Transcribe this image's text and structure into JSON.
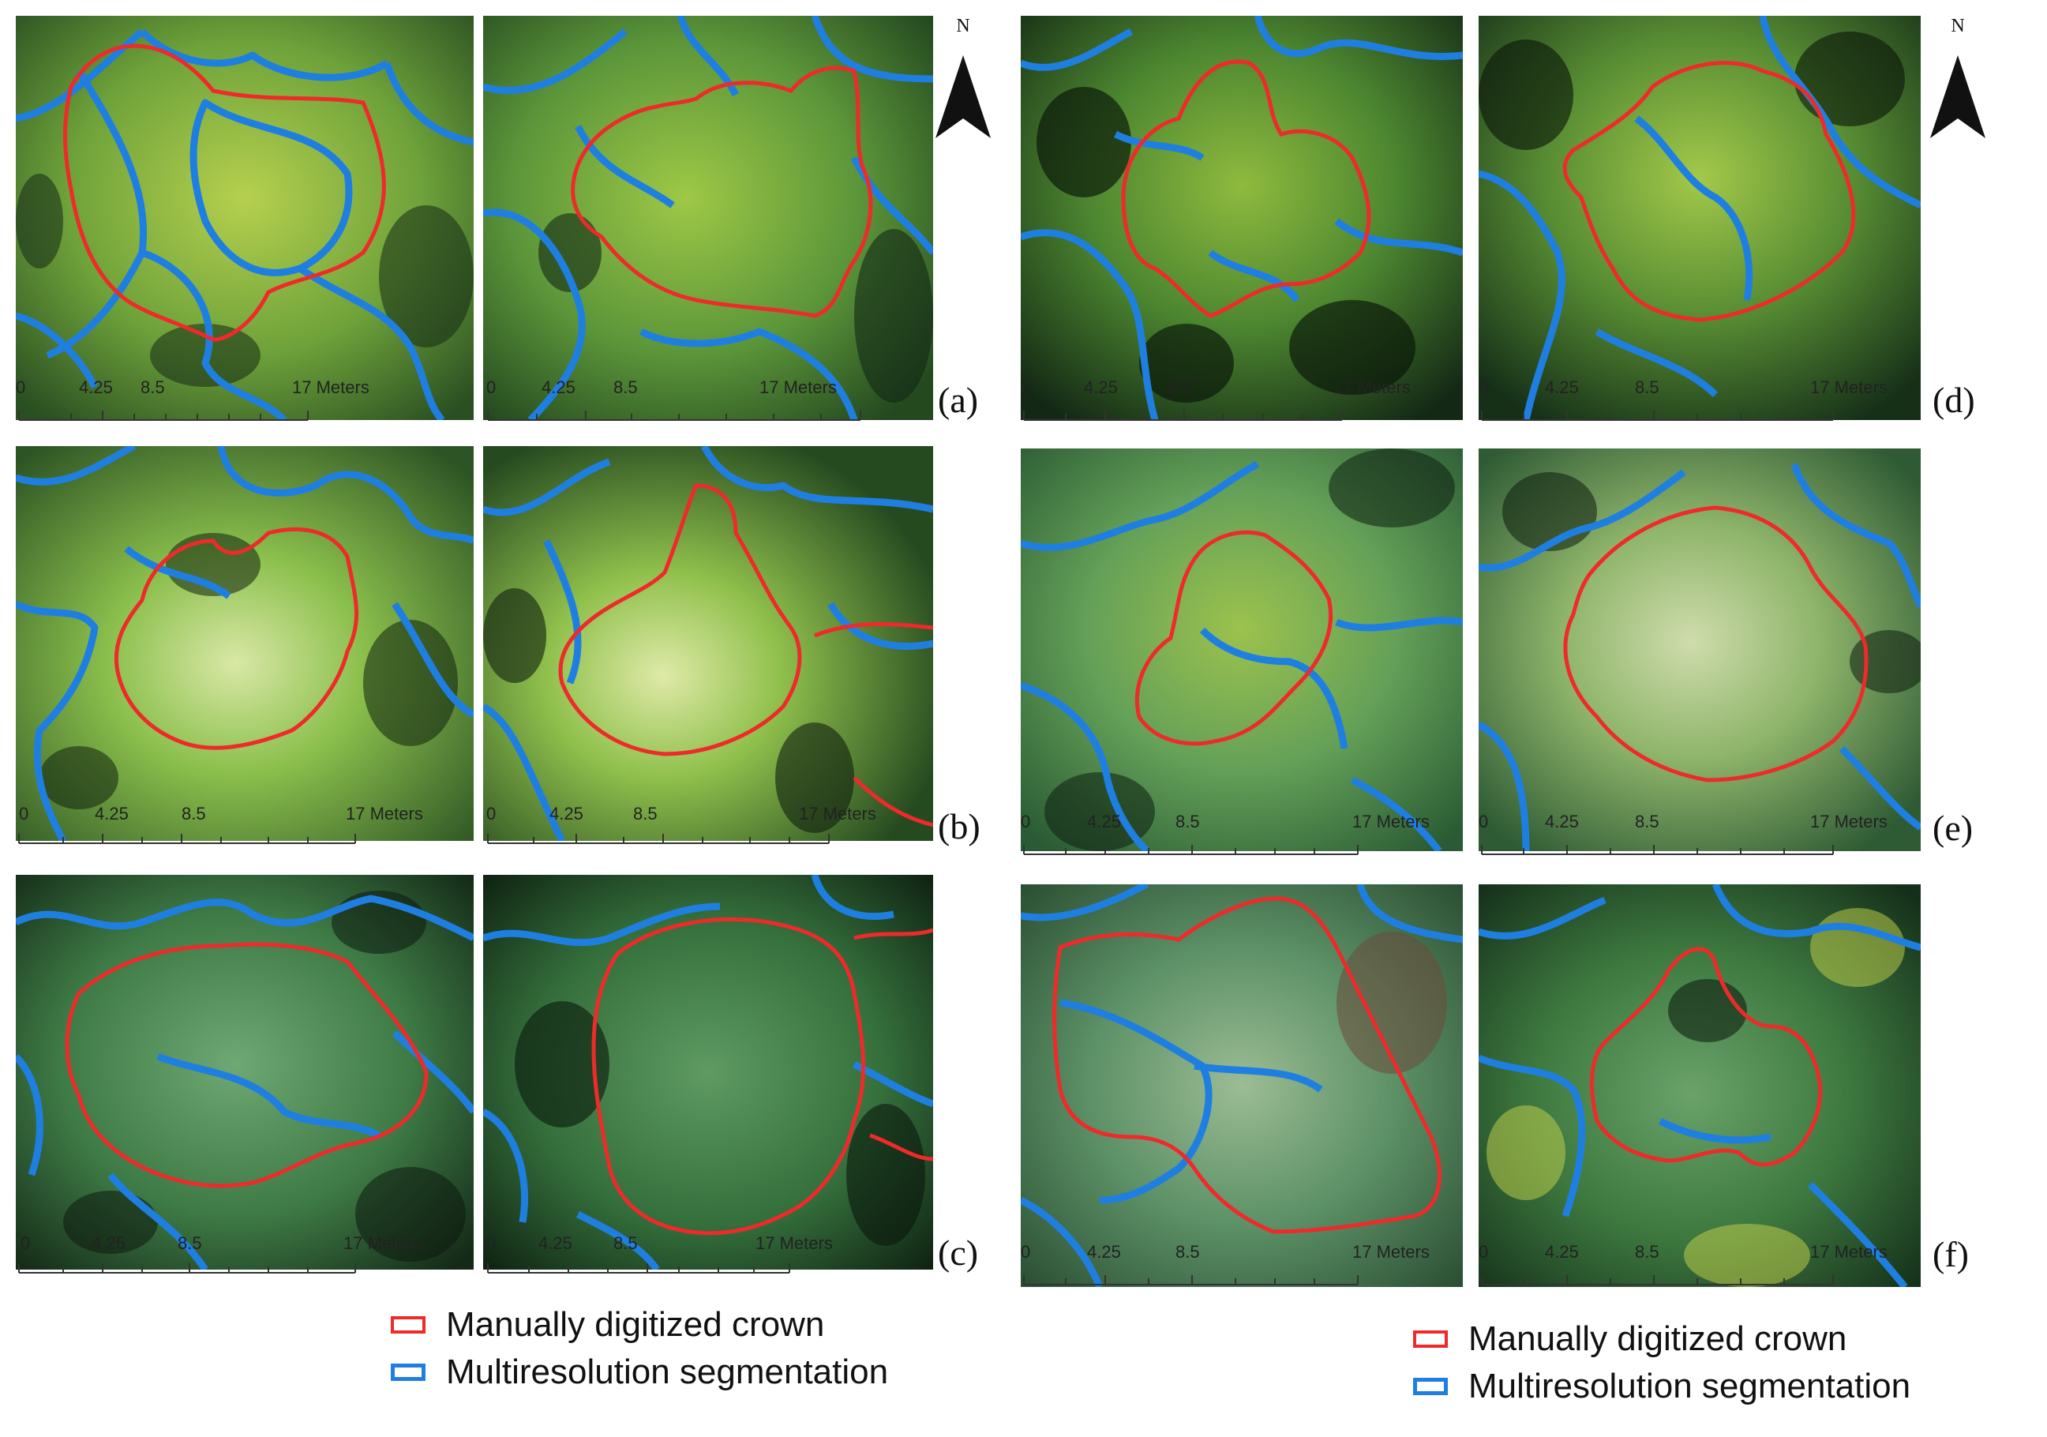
{
  "north_label": "N",
  "scale": {
    "ticks": [
      "0",
      "4.25",
      "8.5",
      "17 Meters"
    ]
  },
  "panels": [
    {
      "tag": "(a)"
    },
    {
      "tag": "(b)"
    },
    {
      "tag": "(c)"
    },
    {
      "tag": "(d)"
    },
    {
      "tag": "(e)"
    },
    {
      "tag": "(f)"
    }
  ],
  "legend": {
    "manual": "Manually digitized crown",
    "segmentation": "Multiresolution segmentation"
  },
  "colors": {
    "manual_crown": "#ee2a2a",
    "segmentation": "#1f7fe0",
    "canopy_light": "#a9c84a",
    "canopy_mid": "#5e9a35",
    "canopy_dark": "#244a1e",
    "shadow": "#0d1a10"
  }
}
